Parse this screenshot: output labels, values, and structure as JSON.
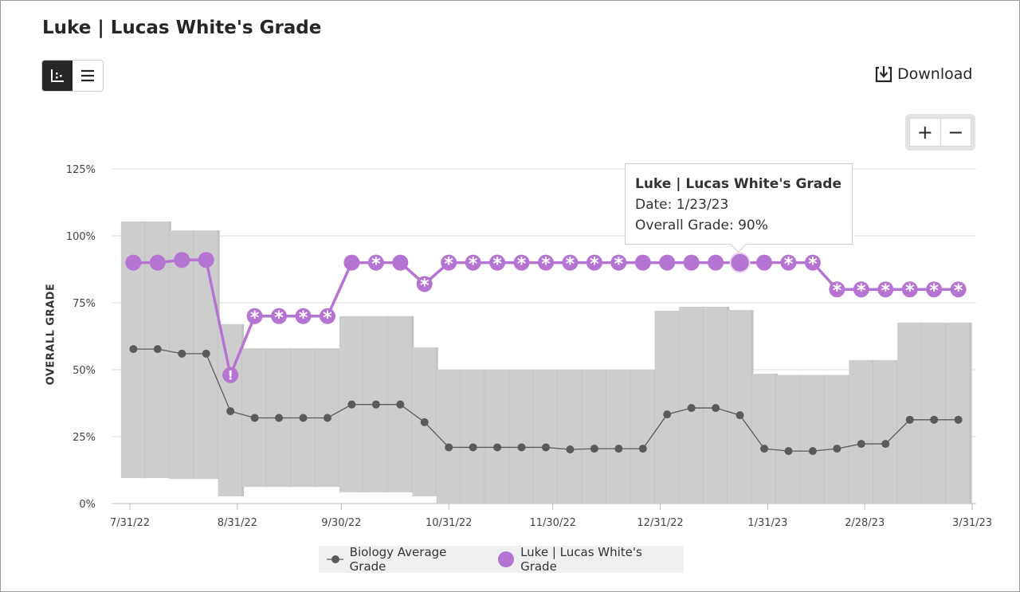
{
  "header": {
    "title": "Luke | Lucas White's Grade",
    "download_label": "Download"
  },
  "view_toggle": [
    {
      "icon": "chart-icon",
      "active": true
    },
    {
      "icon": "list-icon",
      "active": false
    }
  ],
  "zoom_controls": {
    "zoom_in": "+",
    "zoom_out": "−"
  },
  "tooltip": {
    "title": "Luke | Lucas White's Grade",
    "date": "Date: 1/23/23",
    "grade": "Overall Grade: 90%"
  },
  "colors": {
    "student": "#b574d1",
    "average": "#5a5a5a",
    "range": "#cdcdcd",
    "grid": "#dcdcdc"
  },
  "chart_data": {
    "type": "line",
    "ylabel": "OVERALL GRADE",
    "ylim": [
      0,
      125
    ],
    "yticks": [
      "0%",
      "25%",
      "50%",
      "75%",
      "100%",
      "125%"
    ],
    "xticks": [
      "7/31/22",
      "8/31/22",
      "9/30/22",
      "10/31/22",
      "11/30/22",
      "12/31/22",
      "1/31/23",
      "2/28/23",
      "3/31/23"
    ],
    "xlim": [
      "7/31/22",
      "3/31/23"
    ],
    "grid": true,
    "legend_placement": "bottom",
    "x": [
      "8/1/22",
      "8/8/22",
      "8/15/22",
      "8/22/22",
      "8/29/22",
      "9/5/22",
      "9/12/22",
      "9/19/22",
      "9/26/22",
      "10/3/22",
      "10/10/22",
      "10/17/22",
      "10/24/22",
      "10/31/22",
      "11/7/22",
      "11/14/22",
      "11/21/22",
      "11/28/22",
      "12/5/22",
      "12/12/22",
      "12/19/22",
      "12/26/22",
      "1/2/23",
      "1/9/23",
      "1/16/23",
      "1/23/23",
      "1/30/23",
      "2/6/23",
      "2/13/23",
      "2/20/23",
      "2/27/23",
      "3/6/23",
      "3/13/23",
      "3/20/23",
      "3/27/23"
    ],
    "series": [
      {
        "name": "Biology Average Grade",
        "values": [
          57.7,
          57.7,
          56,
          56,
          34.5,
          32,
          32,
          32,
          32,
          37,
          37,
          37,
          30.4,
          21,
          21,
          21,
          21,
          21,
          20.2,
          20.5,
          20.5,
          20.5,
          33.3,
          35.7,
          35.7,
          33,
          20.5,
          19.6,
          19.6,
          20.5,
          22.3,
          22.3,
          31.3,
          31.3,
          31.3
        ],
        "range_min": [
          9.5,
          9.5,
          9.2,
          9.2,
          2.7,
          6.2,
          6.2,
          6.2,
          6.2,
          4.2,
          4.2,
          4.2,
          2.7,
          0,
          0,
          0,
          0,
          0,
          0,
          0,
          0,
          0,
          0,
          0,
          0,
          0,
          0,
          0,
          0,
          0,
          0,
          0,
          0,
          0,
          0
        ],
        "range_max": [
          105.4,
          105.4,
          102,
          102,
          67,
          58,
          58,
          58,
          58,
          70,
          70,
          70,
          58.3,
          50,
          50,
          50,
          50,
          50,
          50,
          50,
          50,
          50,
          72,
          73.5,
          73.5,
          72.3,
          48.5,
          48,
          48,
          48,
          53.6,
          53.6,
          67.6,
          67.6,
          67.6
        ]
      },
      {
        "name": "Luke | Lucas White's Grade",
        "values": [
          90,
          90,
          91,
          91,
          48,
          70,
          70,
          70,
          70,
          90,
          90,
          90,
          82,
          90,
          90,
          90,
          90,
          90,
          90,
          90,
          90,
          90,
          90,
          90,
          90,
          90,
          90,
          90,
          90,
          80,
          80,
          80,
          80,
          80,
          80
        ],
        "markers": [
          "",
          "",
          "",
          "",
          "!",
          "*",
          "*",
          "*",
          "*",
          "",
          "*",
          "",
          "*",
          "*",
          "*",
          "*",
          "*",
          "*",
          "*",
          "*",
          "*",
          "",
          "",
          "",
          "",
          "",
          "",
          "*",
          "*",
          "*",
          "*",
          "*",
          "*",
          "*",
          "*"
        ]
      }
    ]
  }
}
